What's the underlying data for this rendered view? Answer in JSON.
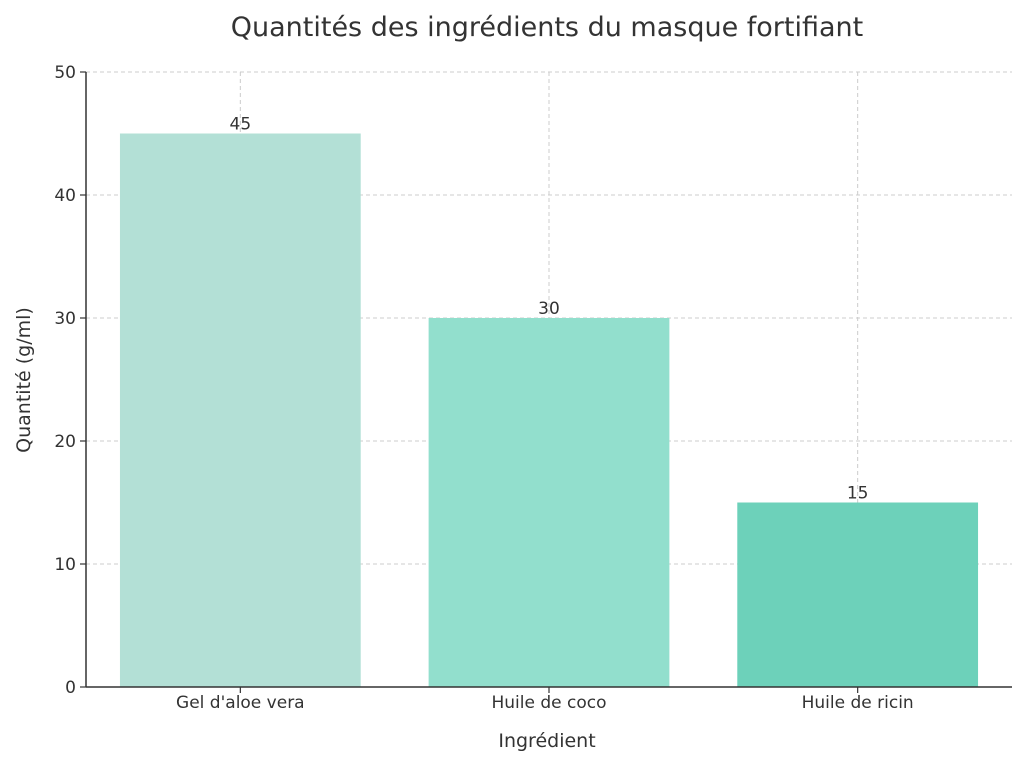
{
  "chart_data": {
    "type": "bar",
    "title": "Quantités des ingrédients du masque fortifiant",
    "xlabel": "Ingrédient",
    "ylabel": "Quantité (g/ml)",
    "categories": [
      "Gel d'aloe vera",
      "Huile de coco",
      "Huile de ricin"
    ],
    "values": [
      45,
      30,
      15
    ],
    "colors": [
      "#b3e0d6",
      "#92dfcd",
      "#6dd1ba"
    ],
    "ylim": [
      0,
      50
    ],
    "yticks": [
      0,
      10,
      20,
      30,
      40,
      50
    ],
    "grid": true,
    "legend": "none"
  }
}
